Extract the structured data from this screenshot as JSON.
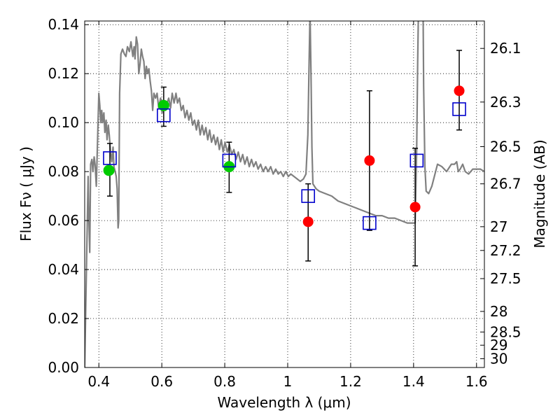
{
  "chart_data": {
    "type": "scatter",
    "xlabel": "Wavelength  λ (μm)",
    "ylabel": "Flux  Fν  ( μJy )",
    "ylabel_right": "Magnitude (AB)",
    "xlim": [
      0.355,
      1.625
    ],
    "ylim": [
      0.0,
      0.1415
    ],
    "grid": true,
    "x_ticks": [
      {
        "value": 0.4,
        "label": "0.4"
      },
      {
        "value": 0.6,
        "label": "0.6"
      },
      {
        "value": 0.8,
        "label": "0.8"
      },
      {
        "value": 1.0,
        "label": "1"
      },
      {
        "value": 1.2,
        "label": "1.2"
      },
      {
        "value": 1.4,
        "label": "1.4"
      },
      {
        "value": 1.6,
        "label": "1.6"
      }
    ],
    "y_ticks": [
      {
        "value": 0.0,
        "label": "0.00"
      },
      {
        "value": 0.02,
        "label": "0.02"
      },
      {
        "value": 0.04,
        "label": "0.04"
      },
      {
        "value": 0.06,
        "label": "0.06"
      },
      {
        "value": 0.08,
        "label": "0.08"
      },
      {
        "value": 0.1,
        "label": "0.10"
      },
      {
        "value": 0.12,
        "label": "0.12"
      },
      {
        "value": 0.14,
        "label": "0.14"
      }
    ],
    "mag_ticks": [
      {
        "flux": 0.1303,
        "label": "26.1"
      },
      {
        "flux": 0.1084,
        "label": "26.3"
      },
      {
        "flux": 0.0902,
        "label": "26.5"
      },
      {
        "flux": 0.075,
        "label": "26.7"
      },
      {
        "flux": 0.0575,
        "label": "27"
      },
      {
        "flux": 0.0478,
        "label": "27.2"
      },
      {
        "flux": 0.0363,
        "label": "27.5"
      },
      {
        "flux": 0.0229,
        "label": "28"
      },
      {
        "flux": 0.0145,
        "label": "28.5"
      },
      {
        "flux": 0.0091,
        "label": "29"
      },
      {
        "flux": 0.0036,
        "label": "30"
      }
    ],
    "series": [
      {
        "kind": "green_points",
        "color": "#00cc00",
        "points": [
          {
            "x": 0.432,
            "y": 0.0805
          },
          {
            "x": 0.606,
            "y": 0.107
          },
          {
            "x": 0.814,
            "y": 0.082
          }
        ]
      },
      {
        "kind": "red_points",
        "color": "#ff0000",
        "points": [
          {
            "x": 1.065,
            "y": 0.0595
          },
          {
            "x": 1.26,
            "y": 0.0845
          },
          {
            "x": 1.405,
            "y": 0.0655
          },
          {
            "x": 1.545,
            "y": 0.113
          }
        ]
      },
      {
        "kind": "blue_squares",
        "color": "#0000cc",
        "points": [
          {
            "x": 0.435,
            "y": 0.0855
          },
          {
            "x": 0.606,
            "y": 0.103
          },
          {
            "x": 0.814,
            "y": 0.0845
          },
          {
            "x": 1.065,
            "y": 0.07
          },
          {
            "x": 1.26,
            "y": 0.059
          },
          {
            "x": 1.41,
            "y": 0.0845
          },
          {
            "x": 1.545,
            "y": 0.1055
          }
        ]
      },
      {
        "kind": "error_bars",
        "color": "#000000",
        "bars": [
          {
            "x": 0.435,
            "low": 0.07,
            "high": 0.0915
          },
          {
            "x": 0.606,
            "low": 0.0985,
            "high": 0.1145
          },
          {
            "x": 0.814,
            "low": 0.0715,
            "high": 0.092
          },
          {
            "x": 1.065,
            "low": 0.0435,
            "high": 0.075
          },
          {
            "x": 1.26,
            "low": 0.056,
            "high": 0.113
          },
          {
            "x": 1.405,
            "low": 0.0415,
            "high": 0.0895
          },
          {
            "x": 1.545,
            "low": 0.097,
            "high": 0.1295
          }
        ]
      },
      {
        "kind": "model_sed",
        "color": "#808080",
        "points": [
          [
            0.355,
            0.0
          ],
          [
            0.362,
            0.05
          ],
          [
            0.366,
            0.078
          ],
          [
            0.368,
            0.062
          ],
          [
            0.371,
            0.047
          ],
          [
            0.374,
            0.083
          ],
          [
            0.378,
            0.085
          ],
          [
            0.381,
            0.08
          ],
          [
            0.385,
            0.086
          ],
          [
            0.388,
            0.083
          ],
          [
            0.392,
            0.074
          ],
          [
            0.396,
            0.093
          ],
          [
            0.4,
            0.112
          ],
          [
            0.403,
            0.107
          ],
          [
            0.406,
            0.1
          ],
          [
            0.409,
            0.105
          ],
          [
            0.412,
            0.1
          ],
          [
            0.416,
            0.104
          ],
          [
            0.419,
            0.096
          ],
          [
            0.423,
            0.101
          ],
          [
            0.426,
            0.093
          ],
          [
            0.43,
            0.099
          ],
          [
            0.433,
            0.095
          ],
          [
            0.437,
            0.088
          ],
          [
            0.441,
            0.084
          ],
          [
            0.445,
            0.09
          ],
          [
            0.448,
            0.082
          ],
          [
            0.452,
            0.08
          ],
          [
            0.455,
            0.078
          ],
          [
            0.458,
            0.073
          ],
          [
            0.461,
            0.057
          ],
          [
            0.463,
            0.06
          ],
          [
            0.466,
            0.112
          ],
          [
            0.47,
            0.128
          ],
          [
            0.475,
            0.13
          ],
          [
            0.481,
            0.128
          ],
          [
            0.486,
            0.127
          ],
          [
            0.491,
            0.131
          ],
          [
            0.497,
            0.129
          ],
          [
            0.502,
            0.133
          ],
          [
            0.508,
            0.127
          ],
          [
            0.512,
            0.131
          ],
          [
            0.515,
            0.126
          ],
          [
            0.519,
            0.135
          ],
          [
            0.523,
            0.132
          ],
          [
            0.527,
            0.12
          ],
          [
            0.531,
            0.124
          ],
          [
            0.535,
            0.13
          ],
          [
            0.539,
            0.127
          ],
          [
            0.543,
            0.125
          ],
          [
            0.547,
            0.118
          ],
          [
            0.551,
            0.123
          ],
          [
            0.555,
            0.12
          ],
          [
            0.559,
            0.122
          ],
          [
            0.563,
            0.117
          ],
          [
            0.567,
            0.113
          ],
          [
            0.571,
            0.105
          ],
          [
            0.575,
            0.112
          ],
          [
            0.58,
            0.11
          ],
          [
            0.585,
            0.112
          ],
          [
            0.59,
            0.106
          ],
          [
            0.596,
            0.11
          ],
          [
            0.601,
            0.104
          ],
          [
            0.607,
            0.109
          ],
          [
            0.612,
            0.105
          ],
          [
            0.617,
            0.108
          ],
          [
            0.622,
            0.11
          ],
          [
            0.628,
            0.106
          ],
          [
            0.633,
            0.112
          ],
          [
            0.639,
            0.108
          ],
          [
            0.645,
            0.112
          ],
          [
            0.65,
            0.108
          ],
          [
            0.656,
            0.11
          ],
          [
            0.662,
            0.105
          ],
          [
            0.668,
            0.107
          ],
          [
            0.674,
            0.102
          ],
          [
            0.68,
            0.105
          ],
          [
            0.686,
            0.101
          ],
          [
            0.692,
            0.104
          ],
          [
            0.698,
            0.099
          ],
          [
            0.704,
            0.101
          ],
          [
            0.71,
            0.097
          ],
          [
            0.716,
            0.101
          ],
          [
            0.722,
            0.095
          ],
          [
            0.728,
            0.099
          ],
          [
            0.734,
            0.095
          ],
          [
            0.74,
            0.098
          ],
          [
            0.746,
            0.093
          ],
          [
            0.752,
            0.097
          ],
          [
            0.758,
            0.092
          ],
          [
            0.765,
            0.095
          ],
          [
            0.771,
            0.091
          ],
          [
            0.777,
            0.094
          ],
          [
            0.783,
            0.089
          ],
          [
            0.789,
            0.093
          ],
          [
            0.795,
            0.088
          ],
          [
            0.801,
            0.092
          ],
          [
            0.808,
            0.088
          ],
          [
            0.815,
            0.091
          ],
          [
            0.822,
            0.087
          ],
          [
            0.829,
            0.089
          ],
          [
            0.836,
            0.085
          ],
          [
            0.843,
            0.088
          ],
          [
            0.85,
            0.084
          ],
          [
            0.857,
            0.087
          ],
          [
            0.864,
            0.083
          ],
          [
            0.871,
            0.086
          ],
          [
            0.878,
            0.082
          ],
          [
            0.885,
            0.085
          ],
          [
            0.892,
            0.082
          ],
          [
            0.899,
            0.084
          ],
          [
            0.906,
            0.081
          ],
          [
            0.914,
            0.083
          ],
          [
            0.922,
            0.08
          ],
          [
            0.93,
            0.082
          ],
          [
            0.938,
            0.08
          ],
          [
            0.946,
            0.082
          ],
          [
            0.954,
            0.079
          ],
          [
            0.962,
            0.081
          ],
          [
            0.97,
            0.079
          ],
          [
            0.978,
            0.08
          ],
          [
            0.986,
            0.078
          ],
          [
            0.994,
            0.08
          ],
          [
            1.002,
            0.078
          ],
          [
            1.01,
            0.079
          ],
          [
            1.02,
            0.078
          ],
          [
            1.03,
            0.077
          ],
          [
            1.04,
            0.076
          ],
          [
            1.05,
            0.077
          ],
          [
            1.058,
            0.079
          ],
          [
            1.064,
            0.095
          ],
          [
            1.068,
            0.125
          ],
          [
            1.071,
            0.145
          ],
          [
            1.074,
            0.12
          ],
          [
            1.077,
            0.09
          ],
          [
            1.08,
            0.075
          ],
          [
            1.09,
            0.073
          ],
          [
            1.1,
            0.072
          ],
          [
            1.12,
            0.071
          ],
          [
            1.14,
            0.07
          ],
          [
            1.16,
            0.068
          ],
          [
            1.18,
            0.067
          ],
          [
            1.2,
            0.066
          ],
          [
            1.22,
            0.065
          ],
          [
            1.24,
            0.064
          ],
          [
            1.26,
            0.063
          ],
          [
            1.28,
            0.062
          ],
          [
            1.3,
            0.062
          ],
          [
            1.32,
            0.061
          ],
          [
            1.34,
            0.061
          ],
          [
            1.36,
            0.06
          ],
          [
            1.38,
            0.059
          ],
          [
            1.395,
            0.059
          ],
          [
            1.405,
            0.059
          ],
          [
            1.41,
            0.09
          ],
          [
            1.413,
            0.125
          ],
          [
            1.416,
            0.15
          ],
          [
            1.43,
            0.15
          ],
          [
            1.432,
            0.115
          ],
          [
            1.436,
            0.082
          ],
          [
            1.44,
            0.072
          ],
          [
            1.448,
            0.071
          ],
          [
            1.458,
            0.074
          ],
          [
            1.468,
            0.079
          ],
          [
            1.476,
            0.083
          ],
          [
            1.49,
            0.082
          ],
          [
            1.505,
            0.08
          ],
          [
            1.52,
            0.083
          ],
          [
            1.53,
            0.083
          ],
          [
            1.537,
            0.084
          ],
          [
            1.542,
            0.08
          ],
          [
            1.548,
            0.081
          ],
          [
            1.556,
            0.083
          ],
          [
            1.564,
            0.08
          ],
          [
            1.575,
            0.079
          ],
          [
            1.588,
            0.081
          ],
          [
            1.6,
            0.081
          ],
          [
            1.612,
            0.081
          ],
          [
            1.625,
            0.08
          ]
        ]
      }
    ]
  }
}
